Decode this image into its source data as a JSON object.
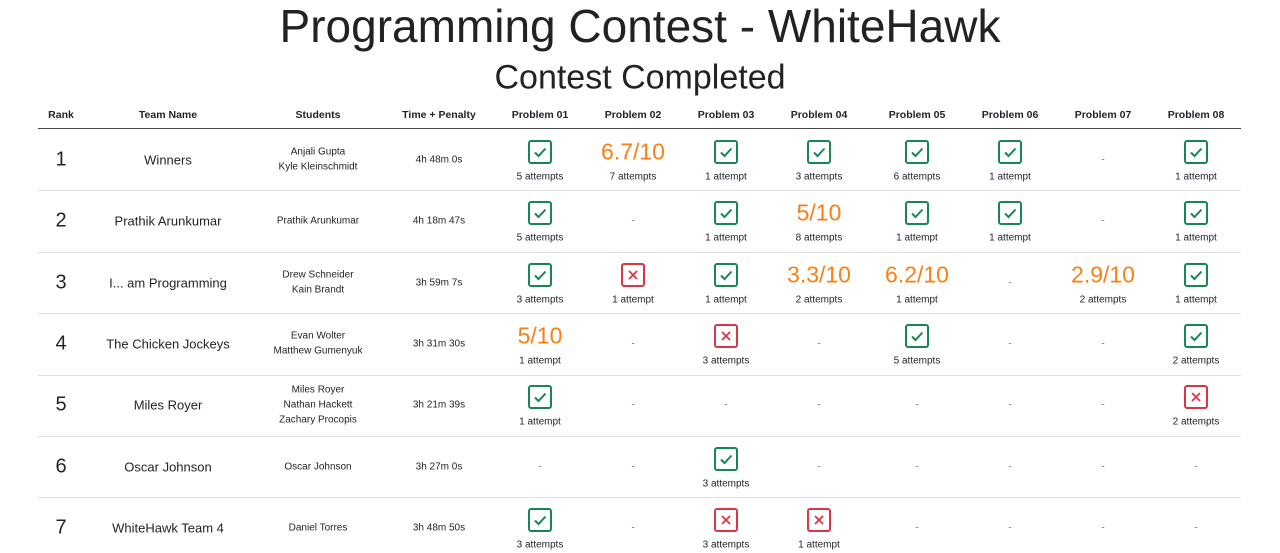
{
  "header": {
    "title": "Programming Contest - WhiteHawk",
    "subtitle": "Contest Completed"
  },
  "table": {
    "columns": [
      "Rank",
      "Team Name",
      "Students",
      "Time + Penalty",
      "Problem 01",
      "Problem 02",
      "Problem 03",
      "Problem 04",
      "Problem 05",
      "Problem 06",
      "Problem 07",
      "Problem 08"
    ],
    "rows": [
      {
        "rank": 1,
        "team": "Winners",
        "students": [
          "Anjali Gupta",
          "Kyle Kleinschmidt"
        ],
        "time": "4h 48m 0s",
        "problems": [
          {
            "mark": "check",
            "attempts": "5 attempts"
          },
          {
            "score": "6.7/10",
            "attempts": "7 attempts"
          },
          {
            "mark": "check",
            "attempts": "1 attempt"
          },
          {
            "mark": "check",
            "attempts": "3 attempts"
          },
          {
            "mark": "check",
            "attempts": "6 attempts"
          },
          {
            "mark": "check",
            "attempts": "1 attempt"
          },
          {
            "text": "-"
          },
          {
            "mark": "check",
            "attempts": "1 attempt"
          }
        ]
      },
      {
        "rank": 2,
        "team": "Prathik Arunkumar",
        "students": [
          "Prathik Arunkumar"
        ],
        "time": "4h 18m 47s",
        "problems": [
          {
            "mark": "check",
            "attempts": "5 attempts"
          },
          {
            "text": "-"
          },
          {
            "mark": "check",
            "attempts": "1 attempt"
          },
          {
            "score": "5/10",
            "attempts": "8 attempts"
          },
          {
            "mark": "check",
            "attempts": "1 attempt"
          },
          {
            "mark": "check",
            "attempts": "1 attempt"
          },
          {
            "text": "-"
          },
          {
            "mark": "check",
            "attempts": "1 attempt"
          }
        ]
      },
      {
        "rank": 3,
        "team": "I... am Programming",
        "students": [
          "Drew Schneider",
          "Kain Brandt"
        ],
        "time": "3h 59m 7s",
        "problems": [
          {
            "mark": "check",
            "attempts": "3 attempts"
          },
          {
            "mark": "cross",
            "attempts": "1 attempt"
          },
          {
            "mark": "check",
            "attempts": "1 attempt"
          },
          {
            "score": "3.3/10",
            "attempts": "2 attempts"
          },
          {
            "score": "6.2/10",
            "attempts": "1 attempt"
          },
          {
            "text": "-"
          },
          {
            "score": "2.9/10",
            "attempts": "2 attempts"
          },
          {
            "mark": "check",
            "attempts": "1 attempt"
          }
        ]
      },
      {
        "rank": 4,
        "team": "The Chicken Jockeys",
        "students": [
          "Evan Wolter",
          "Matthew Gumenyuk"
        ],
        "time": "3h 31m 30s",
        "problems": [
          {
            "score": "5/10",
            "attempts": "1 attempt"
          },
          {
            "text": "-"
          },
          {
            "mark": "cross",
            "attempts": "3 attempts"
          },
          {
            "text": "-"
          },
          {
            "mark": "check",
            "attempts": "5 attempts"
          },
          {
            "text": "-"
          },
          {
            "text": "-"
          },
          {
            "mark": "check",
            "attempts": "2 attempts"
          }
        ]
      },
      {
        "rank": 5,
        "team": "Miles Royer",
        "students": [
          "Miles Royer",
          "Nathan Hackett",
          "Zachary Procopis"
        ],
        "time": "3h 21m 39s",
        "problems": [
          {
            "mark": "check",
            "attempts": "1 attempt"
          },
          {
            "text": "-"
          },
          {
            "text": "-"
          },
          {
            "text": "-"
          },
          {
            "text": "-"
          },
          {
            "text": "-"
          },
          {
            "text": "-"
          },
          {
            "mark": "cross",
            "attempts": "2 attempts"
          }
        ]
      },
      {
        "rank": 6,
        "team": "Oscar Johnson",
        "students": [
          "Oscar Johnson"
        ],
        "time": "3h 27m 0s",
        "problems": [
          {
            "text": "-"
          },
          {
            "text": "-"
          },
          {
            "mark": "check",
            "attempts": "3 attempts"
          },
          {
            "text": "-"
          },
          {
            "text": "-"
          },
          {
            "text": "-"
          },
          {
            "text": "-"
          },
          {
            "text": "-"
          }
        ]
      },
      {
        "rank": 7,
        "team": "WhiteHawk Team 4",
        "students": [
          "Daniel Torres"
        ],
        "time": "3h 48m 50s",
        "problems": [
          {
            "mark": "check",
            "attempts": "3 attempts"
          },
          {
            "text": "-"
          },
          {
            "mark": "cross",
            "attempts": "3 attempts"
          },
          {
            "mark": "cross",
            "attempts": "1 attempt"
          },
          {
            "text": "-"
          },
          {
            "text": "-"
          },
          {
            "text": "-"
          },
          {
            "text": "-"
          }
        ]
      }
    ]
  }
}
